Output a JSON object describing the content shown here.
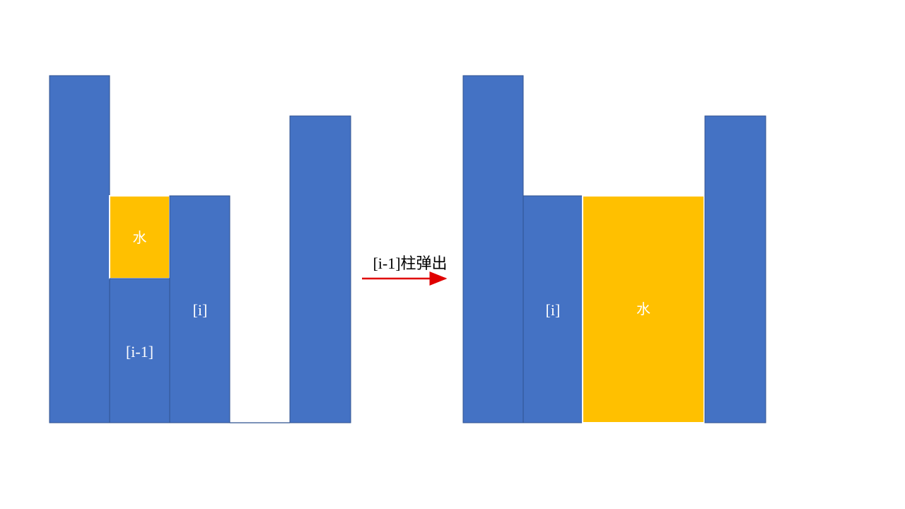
{
  "colors": {
    "bar": "#4472C4",
    "bar_stroke": "#2F528F",
    "water": "#FFC000",
    "water_stroke": "#FFFFFF",
    "arrow": "#E00000"
  },
  "before": {
    "water_label": "水",
    "prev_label": "[i-1]",
    "current_label": "[i]"
  },
  "transition": {
    "label": "[i-1]柱弹出"
  },
  "after": {
    "current_label": "[i]",
    "water_label": "水"
  }
}
